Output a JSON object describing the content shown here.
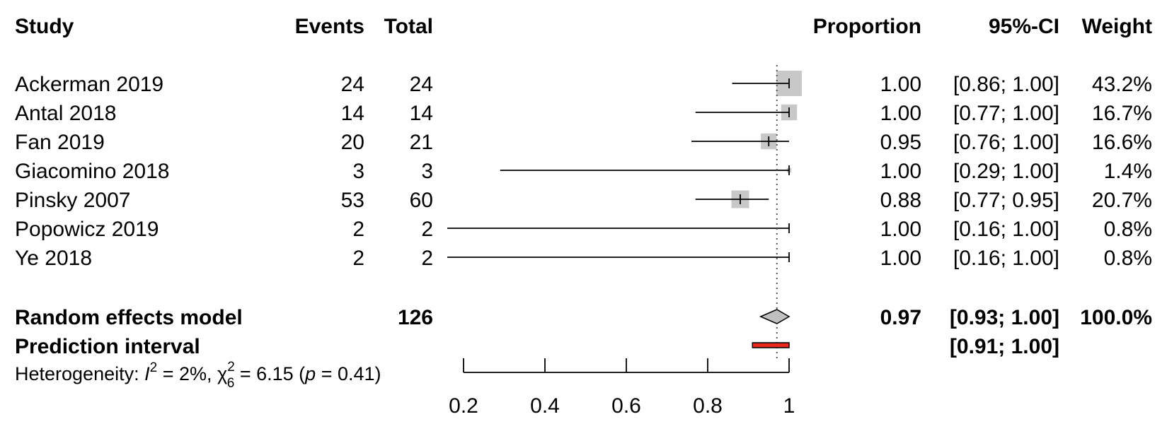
{
  "header": {
    "study": "Study",
    "events": "Events",
    "total": "Total",
    "proportion": "Proportion",
    "ci": "95%-CI",
    "weight": "Weight"
  },
  "summary": {
    "random": {
      "label": "Random effects model",
      "total": "126",
      "proportion": "0.97",
      "ci": "[0.93; 1.00]",
      "weight": "100.0%",
      "estimate": 0.97,
      "lower": 0.93,
      "upper": 1.0
    },
    "prediction": {
      "label": "Prediction interval",
      "ci": "[0.91; 1.00]",
      "lower": 0.91,
      "upper": 1.0
    }
  },
  "heterogeneity": {
    "prefix": "Heterogeneity: ",
    "i_symbol": "I",
    "i_exp": "2",
    "i_value": " = 2%, ",
    "chi_symbol": "χ",
    "chi_exp": "2",
    "chi_sub": "6",
    "chi_value": " = 6.15 (",
    "p_symbol": "p",
    "p_value": " = 0.41)"
  },
  "colors": {
    "square": "#c8c8c8",
    "diamond": "#c0c0c0",
    "prediction": "#e8291c",
    "line": "#000000"
  },
  "chart_data": {
    "type": "forest",
    "xlim": [
      0.2,
      1.0
    ],
    "xticks": [
      0.2,
      0.4,
      0.6,
      0.8,
      1.0
    ],
    "xtick_labels": [
      "0.2",
      "0.4",
      "0.6",
      "0.8",
      "1"
    ],
    "reference_line": 0.97,
    "studies": [
      {
        "study": "Ackerman 2019",
        "events": "24",
        "total": "24",
        "proportion_text": "1.00",
        "ci_text": "[0.86; 1.00]",
        "weight_text": "43.2%",
        "proportion": 1.0,
        "lower": 0.86,
        "upper": 1.0,
        "weight": 43.2
      },
      {
        "study": "Antal 2018",
        "events": "14",
        "total": "14",
        "proportion_text": "1.00",
        "ci_text": "[0.77; 1.00]",
        "weight_text": "16.7%",
        "proportion": 1.0,
        "lower": 0.77,
        "upper": 1.0,
        "weight": 16.7
      },
      {
        "study": "Fan 2019",
        "events": "20",
        "total": "21",
        "proportion_text": "0.95",
        "ci_text": "[0.76; 1.00]",
        "weight_text": "16.6%",
        "proportion": 0.95,
        "lower": 0.76,
        "upper": 1.0,
        "weight": 16.6
      },
      {
        "study": "Giacomino 2018",
        "events": "3",
        "total": "3",
        "proportion_text": "1.00",
        "ci_text": "[0.29; 1.00]",
        "weight_text": "1.4%",
        "proportion": 1.0,
        "lower": 0.29,
        "upper": 1.0,
        "weight": 1.4
      },
      {
        "study": "Pinsky 2007",
        "events": "53",
        "total": "60",
        "proportion_text": "0.88",
        "ci_text": "[0.77; 0.95]",
        "weight_text": "20.7%",
        "proportion": 0.88,
        "lower": 0.77,
        "upper": 0.95,
        "weight": 20.7
      },
      {
        "study": "Popowicz 2019",
        "events": "2",
        "total": "2",
        "proportion_text": "1.00",
        "ci_text": "[0.16; 1.00]",
        "weight_text": "0.8%",
        "proportion": 1.0,
        "lower": 0.16,
        "upper": 1.0,
        "weight": 0.8
      },
      {
        "study": "Ye 2018",
        "events": "2",
        "total": "2",
        "proportion_text": "1.00",
        "ci_text": "[0.16; 1.00]",
        "weight_text": "0.8%",
        "proportion": 1.0,
        "lower": 0.16,
        "upper": 1.0,
        "weight": 0.8
      }
    ]
  }
}
